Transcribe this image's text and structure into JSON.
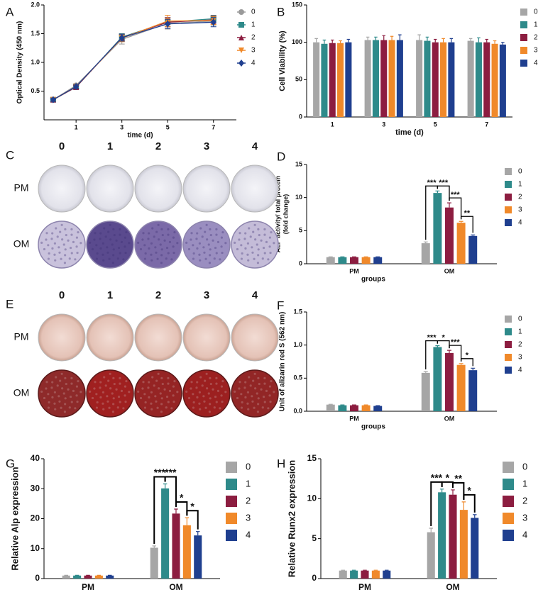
{
  "chart_data": [
    {
      "type": "line",
      "panel": "A",
      "y_label": "Optical Density (450 nm)",
      "x_label": "time (d)",
      "x": [
        0,
        1,
        3,
        5,
        7
      ],
      "xlim": [
        -0.4,
        8
      ],
      "xticks": [
        1,
        3,
        5,
        7
      ],
      "ylim": [
        0,
        2
      ],
      "yticks": [
        0.5,
        {
          "value": 1,
          "label": "1.0"
        },
        1.5,
        {
          "value": 2,
          "label": "2.0"
        }
      ],
      "legend": "right",
      "series": [
        {
          "name": "0",
          "color": "#9a9a9a",
          "marker": "circle",
          "values": [
            0.35,
            0.6,
            1.4,
            1.68,
            1.72
          ],
          "errors": [
            0.03,
            0.03,
            0.08,
            0.1,
            0.08
          ]
        },
        {
          "name": "1",
          "color": "#2e8a8a",
          "marker": "square",
          "values": [
            0.35,
            0.57,
            1.44,
            1.7,
            1.76
          ],
          "errors": [
            0.03,
            0.03,
            0.06,
            0.08,
            0.06
          ]
        },
        {
          "name": "2",
          "color": "#8c1d40",
          "marker": "triangle-up",
          "values": [
            0.35,
            0.57,
            1.43,
            1.7,
            1.74
          ],
          "errors": [
            0.03,
            0.03,
            0.06,
            0.08,
            0.07
          ]
        },
        {
          "name": "3",
          "color": "#f0892a",
          "marker": "triangle-down",
          "values": [
            0.35,
            0.58,
            1.42,
            1.72,
            1.73
          ],
          "errors": [
            0.03,
            0.03,
            0.06,
            0.1,
            0.07
          ]
        },
        {
          "name": "4",
          "color": "#1f3f8f",
          "marker": "diamond",
          "values": [
            0.35,
            0.58,
            1.43,
            1.67,
            1.7
          ],
          "errors": [
            0.03,
            0.03,
            0.06,
            0.08,
            0.08
          ]
        }
      ]
    },
    {
      "type": "bar",
      "panel": "B",
      "y_label": "Cell Viability (%)",
      "x_label": "time (d)",
      "categories": [
        "1",
        "3",
        "5",
        "7"
      ],
      "ylim": [
        0,
        150
      ],
      "yticks": [
        0,
        50,
        100,
        150
      ],
      "legend": "right",
      "series": [
        {
          "name": "0",
          "color": "#a6a6a6",
          "values": [
            100,
            103,
            103,
            102
          ],
          "errors": [
            5,
            4,
            7,
            3
          ]
        },
        {
          "name": "1",
          "color": "#2e8a8a",
          "values": [
            98,
            103,
            102,
            100
          ],
          "errors": [
            5,
            4,
            5,
            6
          ]
        },
        {
          "name": "2",
          "color": "#8c1d40",
          "values": [
            99,
            103,
            100,
            100
          ],
          "errors": [
            4,
            6,
            4,
            4
          ]
        },
        {
          "name": "3",
          "color": "#f0892a",
          "values": [
            99,
            103,
            100,
            98
          ],
          "errors": [
            3,
            5,
            5,
            4
          ]
        },
        {
          "name": "4",
          "color": "#1f3f8f",
          "values": [
            100,
            103,
            100,
            97
          ],
          "errors": [
            4,
            7,
            5,
            3
          ]
        }
      ]
    },
    {
      "type": "bar",
      "panel": "D",
      "y_label": [
        "ALP activity/ total protein",
        "(fold change)"
      ],
      "x_label": "groups",
      "categories": [
        "PM",
        "OM"
      ],
      "ylim": [
        0,
        15
      ],
      "yticks": [
        0,
        5,
        10,
        15
      ],
      "legend": "right",
      "significance": [
        "***",
        "***",
        "***",
        "**"
      ],
      "series": [
        {
          "name": "0",
          "color": "#a6a6a6",
          "values": [
            1.0,
            3.1
          ],
          "errors": [
            0.05,
            0.2
          ]
        },
        {
          "name": "1",
          "color": "#2e8a8a",
          "values": [
            1.0,
            10.7
          ],
          "errors": [
            0.05,
            0.3
          ]
        },
        {
          "name": "2",
          "color": "#8c1d40",
          "values": [
            1.0,
            8.5
          ],
          "errors": [
            0.05,
            0.7
          ]
        },
        {
          "name": "3",
          "color": "#f0892a",
          "values": [
            1.0,
            6.2
          ],
          "errors": [
            0.05,
            0.2
          ]
        },
        {
          "name": "4",
          "color": "#1f3f8f",
          "values": [
            1.0,
            4.2
          ],
          "errors": [
            0.05,
            0.15
          ]
        }
      ]
    },
    {
      "type": "bar",
      "panel": "F",
      "y_label": "Unit of alizarin red S (562 nm)",
      "x_label": "groups",
      "categories": [
        "PM",
        "OM"
      ],
      "ylim": [
        0,
        1.5
      ],
      "yticks": [
        {
          "value": 0,
          "label": "0.0"
        },
        0.5,
        {
          "value": 1,
          "label": "1.0"
        },
        1.5
      ],
      "legend": "right",
      "significance": [
        "***",
        "*",
        "***",
        "*"
      ],
      "series": [
        {
          "name": "0",
          "color": "#a6a6a6",
          "values": [
            0.1,
            0.58
          ],
          "errors": [
            0.005,
            0.02
          ]
        },
        {
          "name": "1",
          "color": "#2e8a8a",
          "values": [
            0.09,
            0.97
          ],
          "errors": [
            0.005,
            0.02
          ]
        },
        {
          "name": "2",
          "color": "#8c1d40",
          "values": [
            0.09,
            0.88
          ],
          "errors": [
            0.005,
            0.04
          ]
        },
        {
          "name": "3",
          "color": "#f0892a",
          "values": [
            0.09,
            0.7
          ],
          "errors": [
            0.005,
            0.02
          ]
        },
        {
          "name": "4",
          "color": "#1f3f8f",
          "values": [
            0.08,
            0.62
          ],
          "errors": [
            0.005,
            0.03
          ]
        }
      ]
    },
    {
      "type": "bar",
      "panel": "G",
      "y_label": "Relative Alp expression",
      "x_label": "groups",
      "categories": [
        "PM",
        "OM"
      ],
      "ylim": [
        0,
        40
      ],
      "yticks": [
        0,
        10,
        20,
        30,
        40
      ],
      "legend": "right",
      "significance": [
        "***",
        "***",
        "*",
        "*"
      ],
      "series": [
        {
          "name": "0",
          "color": "#a6a6a6",
          "values": [
            1,
            10.3
          ],
          "errors": [
            0.1,
            0.6
          ]
        },
        {
          "name": "1",
          "color": "#2e8a8a",
          "values": [
            1,
            30.1
          ],
          "errors": [
            0.1,
            1.5
          ]
        },
        {
          "name": "2",
          "color": "#8c1d40",
          "values": [
            1,
            21.7
          ],
          "errors": [
            0.1,
            1.5
          ]
        },
        {
          "name": "3",
          "color": "#f0892a",
          "values": [
            1,
            17.8
          ],
          "errors": [
            0.1,
            2.5
          ]
        },
        {
          "name": "4",
          "color": "#1f3f8f",
          "values": [
            1,
            14.4
          ],
          "errors": [
            0.1,
            1.3
          ]
        }
      ]
    },
    {
      "type": "bar",
      "panel": "H",
      "y_label": "Relative Runx2 expression",
      "x_label": "groups",
      "categories": [
        "PM",
        "OM"
      ],
      "ylim": [
        0,
        15
      ],
      "yticks": [
        0,
        5,
        10,
        15
      ],
      "legend": "right",
      "significance": [
        "***",
        "*",
        "**",
        "*"
      ],
      "series": [
        {
          "name": "0",
          "color": "#a6a6a6",
          "values": [
            1,
            5.8
          ],
          "errors": [
            0.05,
            0.5
          ]
        },
        {
          "name": "1",
          "color": "#2e8a8a",
          "values": [
            1,
            10.8
          ],
          "errors": [
            0.05,
            0.4
          ]
        },
        {
          "name": "2",
          "color": "#8c1d40",
          "values": [
            1,
            10.5
          ],
          "errors": [
            0.05,
            0.6
          ]
        },
        {
          "name": "3",
          "color": "#f0892a",
          "values": [
            1,
            8.6
          ],
          "errors": [
            0.05,
            1.0
          ]
        },
        {
          "name": "4",
          "color": "#1f3f8f",
          "values": [
            1,
            7.6
          ],
          "errors": [
            0.05,
            0.4
          ]
        }
      ]
    }
  ],
  "images": [
    {
      "panel": "C",
      "columns": [
        "0",
        "1",
        "2",
        "3",
        "4"
      ],
      "rows": [
        "PM",
        "OM"
      ]
    },
    {
      "panel": "E",
      "columns": [
        "0",
        "1",
        "2",
        "3",
        "4"
      ],
      "rows": [
        "PM",
        "OM"
      ]
    }
  ]
}
